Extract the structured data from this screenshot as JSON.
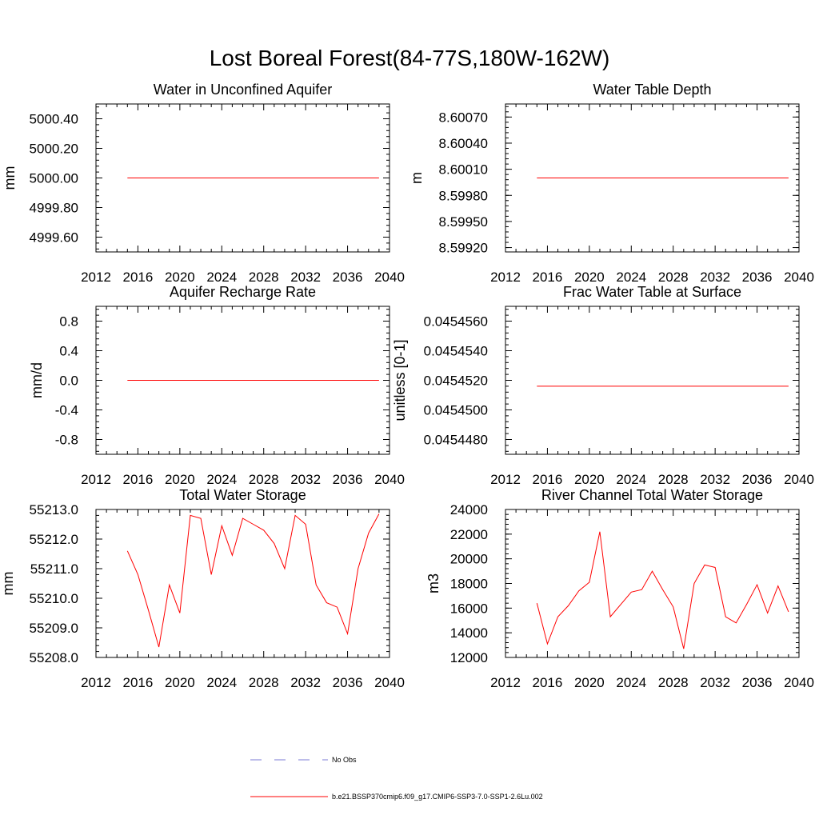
{
  "figure": {
    "title": "Lost Boreal Forest(84-77S,180W-162W)"
  },
  "colors": {
    "model_line": "#ff0000",
    "obs_line": "#7b7bd6",
    "axis": "#000000",
    "background": "#ffffff"
  },
  "legend": {
    "items": [
      {
        "label": "No Obs",
        "style": "dashed",
        "color": "#7b7bd6"
      },
      {
        "label": "b.e21.BSSP370cmip6.f09_g17.CMIP6-SSP3-7.0-SSP1-2.6Lu.002",
        "style": "solid",
        "color": "#ff0000"
      }
    ]
  },
  "chart_data": [
    {
      "type": "line",
      "title": "Water in Unconfined Aquifer",
      "ylabel": "mm",
      "xlim": [
        2012,
        2040
      ],
      "ylim": [
        4999.5,
        5000.5
      ],
      "xticks": [
        "2012",
        "2016",
        "2020",
        "2024",
        "2028",
        "2032",
        "2036",
        "2040"
      ],
      "yticks": [
        {
          "v": 5000.4,
          "label": "5000.40"
        },
        {
          "v": 5000.2,
          "label": "5000.20"
        },
        {
          "v": 5000.0,
          "label": "5000.00"
        },
        {
          "v": 4999.8,
          "label": "4999.80"
        },
        {
          "v": 4999.6,
          "label": "4999.60"
        }
      ],
      "series": [
        {
          "x": [
            2015,
            2016,
            2017,
            2018,
            2019,
            2020,
            2021,
            2022,
            2023,
            2024,
            2025,
            2026,
            2027,
            2028,
            2029,
            2030,
            2031,
            2032,
            2033,
            2034,
            2035,
            2036,
            2037,
            2038,
            2039
          ],
          "y": [
            5000,
            5000,
            5000,
            5000,
            5000,
            5000,
            5000,
            5000,
            5000,
            5000,
            5000,
            5000,
            5000,
            5000,
            5000,
            5000,
            5000,
            5000,
            5000,
            5000,
            5000,
            5000,
            5000,
            5000,
            5000
          ]
        }
      ]
    },
    {
      "type": "line",
      "title": "Water Table Depth",
      "ylabel": "m",
      "xlim": [
        2012,
        2040
      ],
      "ylim": [
        8.59915,
        8.60085
      ],
      "xticks": [
        "2012",
        "2016",
        "2020",
        "2024",
        "2028",
        "2032",
        "2036",
        "2040"
      ],
      "yticks": [
        {
          "v": 8.6007,
          "label": "8.60070"
        },
        {
          "v": 8.6004,
          "label": "8.60040"
        },
        {
          "v": 8.6001,
          "label": "8.60010"
        },
        {
          "v": 8.5998,
          "label": "8.59980"
        },
        {
          "v": 8.5995,
          "label": "8.59950"
        },
        {
          "v": 8.5992,
          "label": "8.59920"
        }
      ],
      "series": [
        {
          "x": [
            2015,
            2016,
            2017,
            2018,
            2019,
            2020,
            2021,
            2022,
            2023,
            2024,
            2025,
            2026,
            2027,
            2028,
            2029,
            2030,
            2031,
            2032,
            2033,
            2034,
            2035,
            2036,
            2037,
            2038,
            2039
          ],
          "y": [
            8.6,
            8.6,
            8.6,
            8.6,
            8.6,
            8.6,
            8.6,
            8.6,
            8.6,
            8.6,
            8.6,
            8.6,
            8.6,
            8.6,
            8.6,
            8.6,
            8.6,
            8.6,
            8.6,
            8.6,
            8.6,
            8.6,
            8.6,
            8.6,
            8.6
          ]
        }
      ]
    },
    {
      "type": "line",
      "title": "Aquifer Recharge Rate",
      "ylabel": "mm/d",
      "xlim": [
        2012,
        2040
      ],
      "ylim": [
        -1.0,
        1.0
      ],
      "xticks": [
        "2012",
        "2016",
        "2020",
        "2024",
        "2028",
        "2032",
        "2036",
        "2040"
      ],
      "yticks": [
        {
          "v": 0.8,
          "label": "0.8"
        },
        {
          "v": 0.4,
          "label": "0.4"
        },
        {
          "v": 0.0,
          "label": "0.0"
        },
        {
          "v": -0.4,
          "label": "-0.4"
        },
        {
          "v": -0.8,
          "label": "-0.8"
        }
      ],
      "series": [
        {
          "x": [
            2015,
            2016,
            2017,
            2018,
            2019,
            2020,
            2021,
            2022,
            2023,
            2024,
            2025,
            2026,
            2027,
            2028,
            2029,
            2030,
            2031,
            2032,
            2033,
            2034,
            2035,
            2036,
            2037,
            2038,
            2039
          ],
          "y": [
            0,
            0,
            0,
            0,
            0,
            0,
            0,
            0,
            0,
            0,
            0,
            0,
            0,
            0,
            0,
            0,
            0,
            0,
            0,
            0,
            0,
            0,
            0,
            0,
            0
          ]
        }
      ]
    },
    {
      "type": "line",
      "title": "Frac Water Table at Surface",
      "ylabel": "unitless [0-1]",
      "xlim": [
        2012,
        2040
      ],
      "ylim": [
        0.045447,
        0.045457
      ],
      "xticks": [
        "2012",
        "2016",
        "2020",
        "2024",
        "2028",
        "2032",
        "2036",
        "2040"
      ],
      "yticks": [
        {
          "v": 0.045456,
          "label": "0.0454560"
        },
        {
          "v": 0.045454,
          "label": "0.0454540"
        },
        {
          "v": 0.045452,
          "label": "0.0454520"
        },
        {
          "v": 0.04545,
          "label": "0.0454500"
        },
        {
          "v": 0.045448,
          "label": "0.0454480"
        }
      ],
      "series": [
        {
          "x": [
            2015,
            2016,
            2017,
            2018,
            2019,
            2020,
            2021,
            2022,
            2023,
            2024,
            2025,
            2026,
            2027,
            2028,
            2029,
            2030,
            2031,
            2032,
            2033,
            2034,
            2035,
            2036,
            2037,
            2038,
            2039
          ],
          "y": [
            0.0454516,
            0.0454516,
            0.0454516,
            0.0454516,
            0.0454516,
            0.0454516,
            0.0454516,
            0.0454516,
            0.0454516,
            0.0454516,
            0.0454516,
            0.0454516,
            0.0454516,
            0.0454516,
            0.0454516,
            0.0454516,
            0.0454516,
            0.0454516,
            0.0454516,
            0.0454516,
            0.0454516,
            0.0454516,
            0.0454516,
            0.0454516,
            0.0454516
          ]
        }
      ]
    },
    {
      "type": "line",
      "title": "Total Water Storage",
      "ylabel": "mm",
      "xlim": [
        2012,
        2040
      ],
      "ylim": [
        55208.0,
        55213.0
      ],
      "xticks": [
        "2012",
        "2016",
        "2020",
        "2024",
        "2028",
        "2032",
        "2036",
        "2040"
      ],
      "yticks": [
        {
          "v": 55213.0,
          "label": "55213.0"
        },
        {
          "v": 55212.0,
          "label": "55212.0"
        },
        {
          "v": 55211.0,
          "label": "55211.0"
        },
        {
          "v": 55210.0,
          "label": "55210.0"
        },
        {
          "v": 55209.0,
          "label": "55209.0"
        },
        {
          "v": 55208.0,
          "label": "55208.0"
        }
      ],
      "series": [
        {
          "x": [
            2015,
            2016,
            2017,
            2018,
            2019,
            2020,
            2021,
            2022,
            2023,
            2024,
            2025,
            2026,
            2027,
            2028,
            2029,
            2030,
            2031,
            2032,
            2033,
            2034,
            2035,
            2036,
            2037,
            2038,
            2039
          ],
          "y": [
            55211.6,
            55210.8,
            55209.6,
            55208.35,
            55210.45,
            55209.5,
            55212.8,
            55212.7,
            55210.8,
            55212.45,
            55211.45,
            55212.7,
            55212.5,
            55212.3,
            55211.85,
            55211.0,
            55212.8,
            55212.5,
            55210.45,
            55209.85,
            55209.7,
            55208.8,
            55211.0,
            55212.2,
            55212.85
          ]
        }
      ]
    },
    {
      "type": "line",
      "title": "River Channel Total Water Storage",
      "ylabel": "m3",
      "xlim": [
        2012,
        2040
      ],
      "ylim": [
        12000,
        24000
      ],
      "xticks": [
        "2012",
        "2016",
        "2020",
        "2024",
        "2028",
        "2032",
        "2036",
        "2040"
      ],
      "yticks": [
        {
          "v": 24000,
          "label": "24000"
        },
        {
          "v": 22000,
          "label": "22000"
        },
        {
          "v": 20000,
          "label": "20000"
        },
        {
          "v": 18000,
          "label": "18000"
        },
        {
          "v": 16000,
          "label": "16000"
        },
        {
          "v": 14000,
          "label": "14000"
        },
        {
          "v": 12000,
          "label": "12000"
        }
      ],
      "series": [
        {
          "x": [
            2015,
            2016,
            2017,
            2018,
            2019,
            2020,
            2021,
            2022,
            2023,
            2024,
            2025,
            2026,
            2027,
            2028,
            2029,
            2030,
            2031,
            2032,
            2033,
            2034,
            2035,
            2036,
            2037,
            2038,
            2039
          ],
          "y": [
            16400,
            13100,
            15300,
            16200,
            17400,
            18100,
            22200,
            15300,
            16300,
            17300,
            17500,
            19000,
            17500,
            16100,
            12700,
            18000,
            19500,
            19300,
            15300,
            14800,
            16300,
            17900,
            15600,
            17800,
            15700
          ]
        }
      ]
    }
  ]
}
